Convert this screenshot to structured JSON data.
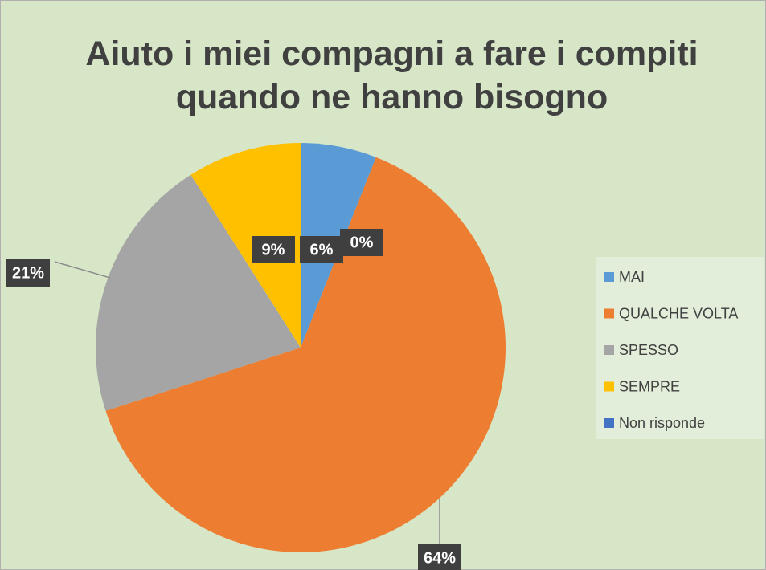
{
  "chart_data": {
    "type": "pie",
    "title": "Aiuto i miei compagni a fare i compiti quando ne hanno bisogno",
    "categories": [
      "MAI",
      "QUALCHE VOLTA",
      "SPESSO",
      "SEMPRE",
      "Non risponde"
    ],
    "values": [
      6,
      64,
      21,
      9,
      0
    ],
    "value_labels": [
      "6%",
      "64%",
      "21%",
      "9%",
      "0%"
    ],
    "colors": [
      "#5b9bd5",
      "#ed7d31",
      "#a5a5a5",
      "#ffc000",
      "#4472c4"
    ],
    "legend": "right"
  }
}
